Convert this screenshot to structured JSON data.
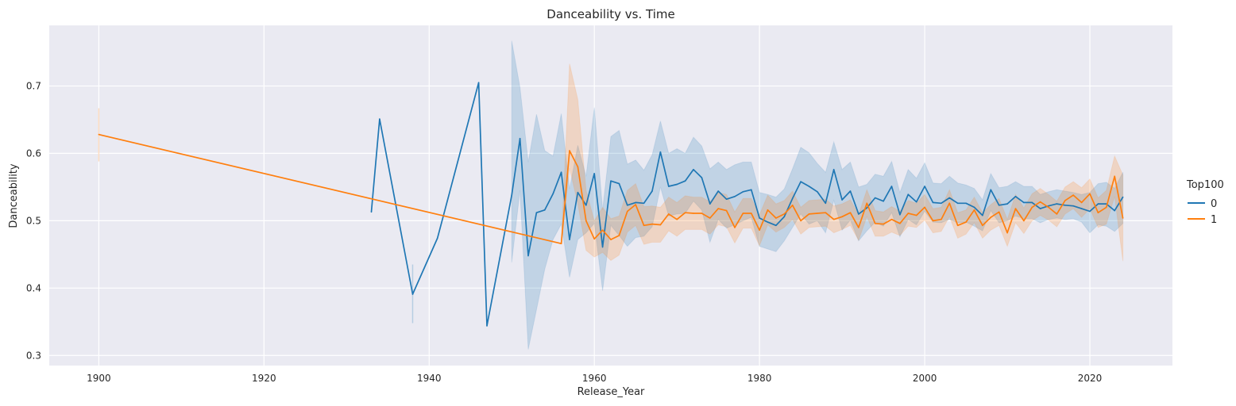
{
  "chart_data": {
    "type": "line",
    "title": "Danceability vs. Time",
    "xlabel": "Release_Year",
    "ylabel": "Danceability",
    "xlim": [
      1894,
      2030
    ],
    "ylim": [
      0.285,
      0.79
    ],
    "xticks": [
      1900,
      1920,
      1940,
      1960,
      1980,
      2000,
      2020
    ],
    "yticks": [
      0.3,
      0.4,
      0.5,
      0.6,
      0.7
    ],
    "grid": true,
    "legend": {
      "title": "Top100",
      "placement": "right"
    },
    "series": [
      {
        "name": "0",
        "color": "#1f77b4",
        "x": [
          1933,
          1934,
          1938,
          1941,
          1946,
          1947,
          1950,
          1951,
          1952,
          1953,
          1954,
          1955,
          1956,
          1957,
          1958,
          1959,
          1960,
          1961,
          1962,
          1963,
          1964,
          1965,
          1966,
          1967,
          1968,
          1969,
          1970,
          1971,
          1972,
          1973,
          1974,
          1975,
          1976,
          1977,
          1978,
          1979,
          1980,
          1981,
          1982,
          1983,
          1984,
          1985,
          1986,
          1987,
          1988,
          1989,
          1990,
          1991,
          1992,
          1993,
          1994,
          1995,
          1996,
          1997,
          1998,
          1999,
          2000,
          2001,
          2002,
          2003,
          2004,
          2005,
          2006,
          2007,
          2008,
          2009,
          2010,
          2011,
          2012,
          2013,
          2014,
          2015,
          2016,
          2017,
          2018,
          2019,
          2020,
          2021,
          2022,
          2023,
          2024
        ],
        "y": [
          0.513,
          0.651,
          0.391,
          0.474,
          0.705,
          0.344,
          0.538,
          0.622,
          0.448,
          0.512,
          0.516,
          0.54,
          0.572,
          0.472,
          0.542,
          0.523,
          0.57,
          0.461,
          0.559,
          0.555,
          0.523,
          0.527,
          0.526,
          0.544,
          0.602,
          0.551,
          0.554,
          0.559,
          0.576,
          0.564,
          0.525,
          0.544,
          0.532,
          0.536,
          0.543,
          0.546,
          0.504,
          0.498,
          0.493,
          0.506,
          0.533,
          0.558,
          0.551,
          0.543,
          0.526,
          0.576,
          0.531,
          0.544,
          0.51,
          0.519,
          0.534,
          0.529,
          0.551,
          0.509,
          0.539,
          0.528,
          0.551,
          0.527,
          0.526,
          0.534,
          0.526,
          0.526,
          0.52,
          0.508,
          0.546,
          0.523,
          0.525,
          0.536,
          0.527,
          0.527,
          0.518,
          0.522,
          0.525,
          0.523,
          0.522,
          0.518,
          0.514,
          0.525,
          0.525,
          0.515,
          0.535
        ],
        "ci_low": [
          0.513,
          0.651,
          0.348,
          0.474,
          0.705,
          0.344,
          0.438,
          0.545,
          0.309,
          0.368,
          0.428,
          0.472,
          0.495,
          0.416,
          0.472,
          0.482,
          0.496,
          0.396,
          0.493,
          0.478,
          0.462,
          0.475,
          0.477,
          0.491,
          0.55,
          0.507,
          0.51,
          0.511,
          0.529,
          0.516,
          0.468,
          0.502,
          0.489,
          0.494,
          0.5,
          0.505,
          0.462,
          0.458,
          0.454,
          0.47,
          0.49,
          0.51,
          0.495,
          0.5,
          0.482,
          0.53,
          0.486,
          0.501,
          0.47,
          0.485,
          0.498,
          0.492,
          0.512,
          0.476,
          0.502,
          0.494,
          0.514,
          0.498,
          0.497,
          0.502,
          0.497,
          0.498,
          0.492,
          0.485,
          0.515,
          0.497,
          0.5,
          0.507,
          0.503,
          0.503,
          0.497,
          0.502,
          0.504,
          0.502,
          0.503,
          0.498,
          0.482,
          0.494,
          0.492,
          0.484,
          0.496
        ],
        "ci_high": [
          0.513,
          0.651,
          0.435,
          0.474,
          0.705,
          0.344,
          0.767,
          0.698,
          0.587,
          0.658,
          0.604,
          0.596,
          0.659,
          0.547,
          0.612,
          0.566,
          0.668,
          0.516,
          0.625,
          0.634,
          0.584,
          0.59,
          0.575,
          0.598,
          0.648,
          0.6,
          0.607,
          0.6,
          0.624,
          0.611,
          0.577,
          0.587,
          0.576,
          0.583,
          0.587,
          0.587,
          0.542,
          0.539,
          0.535,
          0.547,
          0.577,
          0.609,
          0.601,
          0.585,
          0.572,
          0.617,
          0.576,
          0.587,
          0.55,
          0.554,
          0.569,
          0.566,
          0.588,
          0.542,
          0.576,
          0.563,
          0.586,
          0.556,
          0.555,
          0.566,
          0.556,
          0.553,
          0.548,
          0.531,
          0.57,
          0.549,
          0.551,
          0.558,
          0.551,
          0.551,
          0.539,
          0.543,
          0.546,
          0.544,
          0.542,
          0.539,
          0.542,
          0.555,
          0.557,
          0.548,
          0.572
        ]
      },
      {
        "name": "1",
        "color": "#ff7f0e",
        "x": [
          1900,
          1956,
          1957,
          1958,
          1959,
          1960,
          1961,
          1962,
          1963,
          1964,
          1965,
          1966,
          1967,
          1968,
          1969,
          1970,
          1971,
          1972,
          1973,
          1974,
          1975,
          1976,
          1977,
          1978,
          1979,
          1980,
          1981,
          1982,
          1983,
          1984,
          1985,
          1986,
          1987,
          1988,
          1989,
          1990,
          1991,
          1992,
          1993,
          1994,
          1995,
          1996,
          1997,
          1998,
          1999,
          2000,
          2001,
          2002,
          2003,
          2004,
          2005,
          2006,
          2007,
          2008,
          2009,
          2010,
          2011,
          2012,
          2013,
          2014,
          2015,
          2016,
          2017,
          2018,
          2019,
          2020,
          2021,
          2022,
          2023,
          2024
        ],
        "y": [
          0.628,
          0.466,
          0.604,
          0.58,
          0.5,
          0.473,
          0.486,
          0.472,
          0.478,
          0.514,
          0.524,
          0.493,
          0.495,
          0.494,
          0.51,
          0.502,
          0.512,
          0.511,
          0.511,
          0.504,
          0.518,
          0.515,
          0.49,
          0.511,
          0.511,
          0.486,
          0.516,
          0.504,
          0.51,
          0.523,
          0.5,
          0.51,
          0.511,
          0.512,
          0.502,
          0.506,
          0.512,
          0.49,
          0.526,
          0.496,
          0.495,
          0.502,
          0.496,
          0.511,
          0.508,
          0.52,
          0.5,
          0.502,
          0.526,
          0.493,
          0.498,
          0.516,
          0.493,
          0.505,
          0.513,
          0.482,
          0.518,
          0.5,
          0.52,
          0.528,
          0.52,
          0.51,
          0.53,
          0.538,
          0.527,
          0.54,
          0.512,
          0.52,
          0.566,
          0.504
        ],
        "ci_low": [
          0.588,
          0.466,
          0.578,
          0.525,
          0.456,
          0.446,
          0.453,
          0.441,
          0.449,
          0.483,
          0.493,
          0.465,
          0.468,
          0.468,
          0.485,
          0.477,
          0.487,
          0.487,
          0.487,
          0.48,
          0.494,
          0.491,
          0.467,
          0.489,
          0.489,
          0.463,
          0.494,
          0.483,
          0.49,
          0.502,
          0.48,
          0.49,
          0.491,
          0.492,
          0.482,
          0.487,
          0.493,
          0.471,
          0.506,
          0.477,
          0.477,
          0.483,
          0.478,
          0.492,
          0.49,
          0.501,
          0.482,
          0.484,
          0.506,
          0.474,
          0.48,
          0.497,
          0.474,
          0.486,
          0.493,
          0.462,
          0.497,
          0.481,
          0.5,
          0.508,
          0.501,
          0.491,
          0.51,
          0.518,
          0.505,
          0.518,
          0.49,
          0.495,
          0.536,
          0.44
        ],
        "ci_high": [
          0.667,
          0.466,
          0.733,
          0.68,
          0.545,
          0.5,
          0.52,
          0.503,
          0.507,
          0.545,
          0.555,
          0.521,
          0.522,
          0.52,
          0.535,
          0.527,
          0.537,
          0.535,
          0.535,
          0.528,
          0.542,
          0.539,
          0.513,
          0.533,
          0.533,
          0.509,
          0.538,
          0.525,
          0.53,
          0.544,
          0.52,
          0.53,
          0.531,
          0.532,
          0.522,
          0.525,
          0.531,
          0.509,
          0.546,
          0.515,
          0.513,
          0.521,
          0.514,
          0.53,
          0.526,
          0.539,
          0.518,
          0.52,
          0.546,
          0.512,
          0.516,
          0.535,
          0.512,
          0.524,
          0.533,
          0.502,
          0.539,
          0.519,
          0.54,
          0.548,
          0.539,
          0.529,
          0.55,
          0.558,
          0.549,
          0.562,
          0.534,
          0.545,
          0.596,
          0.568
        ]
      }
    ]
  }
}
